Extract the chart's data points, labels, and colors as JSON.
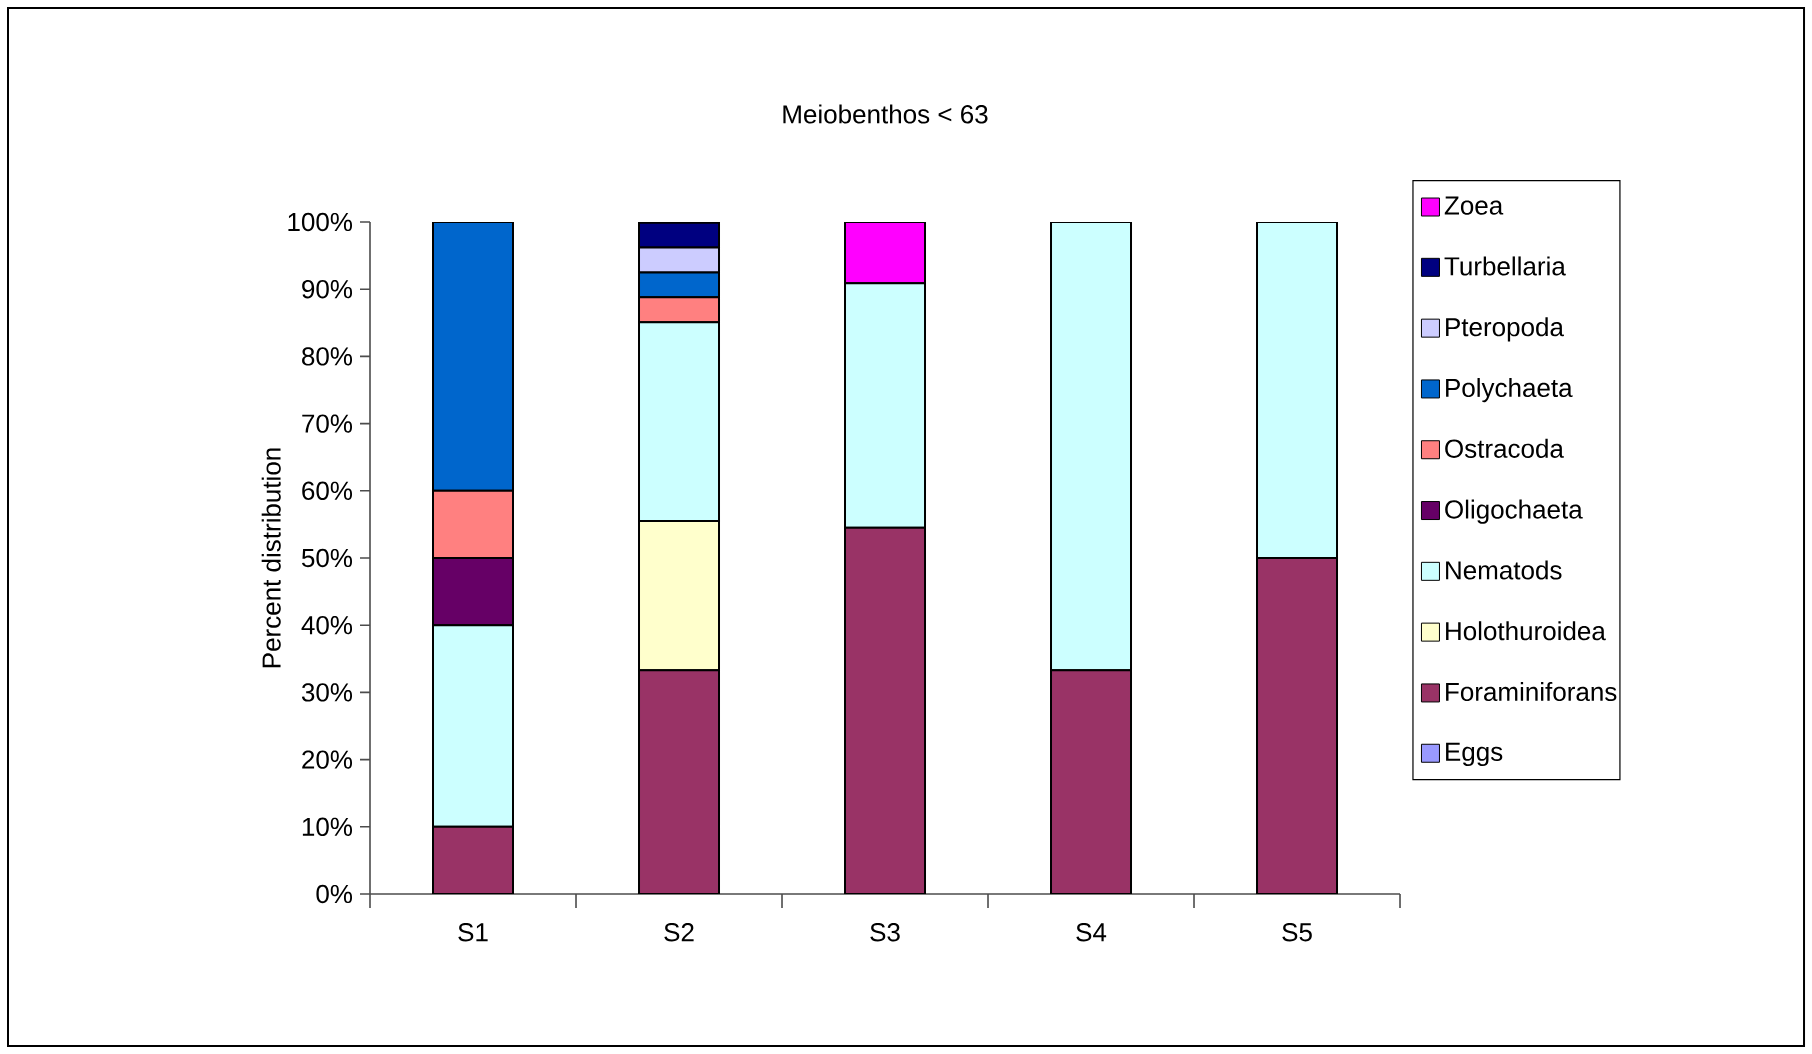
{
  "chart_data": {
    "type": "bar",
    "title": "Meiobenthos < 63",
    "ylabel": "Percent distribution",
    "categories": [
      "S1",
      "S2",
      "S3",
      "S4",
      "S5"
    ],
    "stacked": true,
    "legend": "right",
    "grid": false,
    "ylim": [
      0,
      100
    ],
    "yticks": [
      {
        "value": 0,
        "label": "0%"
      },
      {
        "value": 10,
        "label": "10%"
      },
      {
        "value": 20,
        "label": "20%"
      },
      {
        "value": 30,
        "label": "30%"
      },
      {
        "value": 40,
        "label": "40%"
      },
      {
        "value": 50,
        "label": "50%"
      },
      {
        "value": 60,
        "label": "60%"
      },
      {
        "value": 70,
        "label": "70%"
      },
      {
        "value": 80,
        "label": "80%"
      },
      {
        "value": 90,
        "label": "90%"
      },
      {
        "value": 100,
        "label": "100%"
      }
    ],
    "series": [
      {
        "name": "Eggs",
        "color": "#9999ff",
        "values": [
          0,
          0,
          0,
          0,
          0
        ]
      },
      {
        "name": "Foraminiforans",
        "color": "#993366",
        "values": [
          10,
          33.3,
          54.5,
          33.3,
          50
        ]
      },
      {
        "name": "Holothuroidea",
        "color": "#ffffcc",
        "values": [
          0,
          22.2,
          0,
          0,
          0
        ]
      },
      {
        "name": "Nematods",
        "color": "#ccffff",
        "values": [
          30,
          29.6,
          36.4,
          66.7,
          50
        ]
      },
      {
        "name": "Oligochaeta",
        "color": "#660066",
        "values": [
          10,
          0,
          0,
          0,
          0
        ]
      },
      {
        "name": "Ostracoda",
        "color": "#ff8080",
        "values": [
          10,
          3.7,
          0,
          0,
          0
        ]
      },
      {
        "name": "Polychaeta",
        "color": "#0066cc",
        "values": [
          40,
          3.7,
          0,
          0,
          0
        ]
      },
      {
        "name": "Pteropoda",
        "color": "#ccccff",
        "values": [
          0,
          3.7,
          0,
          0,
          0
        ]
      },
      {
        "name": "Turbellaria",
        "color": "#000080",
        "values": [
          0,
          3.7,
          0,
          0,
          0
        ]
      },
      {
        "name": "Zoea",
        "color": "#ff00ff",
        "values": [
          0,
          0,
          9.1,
          0,
          0
        ]
      }
    ]
  }
}
